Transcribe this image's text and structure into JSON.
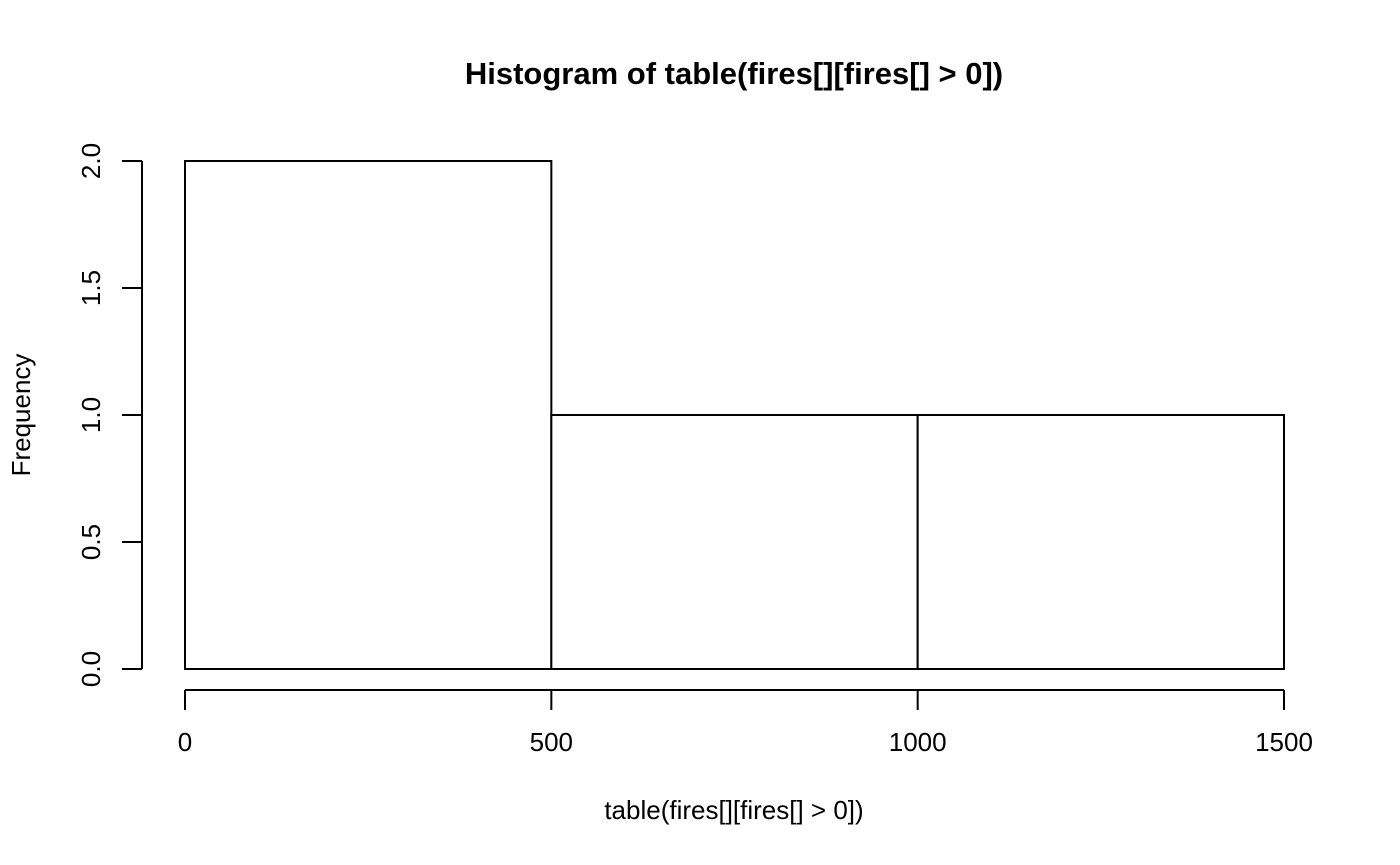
{
  "chart_data": {
    "type": "bar",
    "title": "Histogram of table(fires[][fires[] > 0])",
    "xlabel": "table(fires[][fires[] > 0])",
    "ylabel": "Frequency",
    "bins": [
      {
        "from": 0,
        "to": 500,
        "count": 2
      },
      {
        "from": 500,
        "to": 1000,
        "count": 1
      },
      {
        "from": 1000,
        "to": 1500,
        "count": 1
      }
    ],
    "xlim": [
      0,
      1500
    ],
    "ylim": [
      0,
      2
    ],
    "x_ticks": [
      "0",
      "500",
      "1000",
      "1500"
    ],
    "y_ticks": [
      "0.0",
      "0.5",
      "1.0",
      "1.5",
      "2.0"
    ],
    "grid": false,
    "colors": {
      "bar_fill": "#ffffff",
      "bar_stroke": "#000000"
    }
  }
}
